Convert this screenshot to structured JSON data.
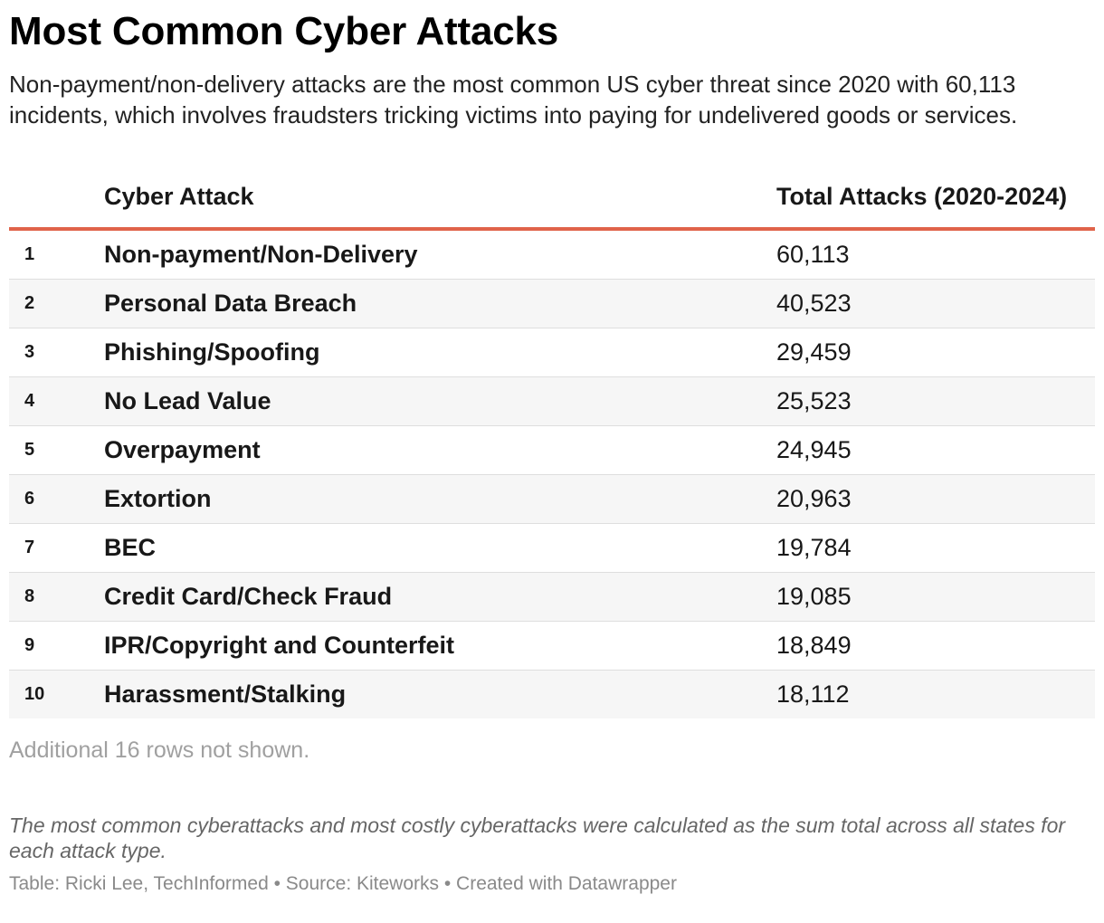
{
  "title": "Most Common Cyber Attacks",
  "subtitle": "Non-payment/non-delivery attacks are the most common US cyber threat since 2020 with 60,113 incidents, which involves fraudsters tricking victims into paying for undelivered goods or services.",
  "colors": {
    "header_rule": "#e0634a",
    "stripe": "#f6f6f6"
  },
  "chart_data": {
    "type": "table",
    "columns": [
      "",
      "Cyber Attack",
      "Total Attacks (2020-2024)"
    ],
    "rows": [
      {
        "rank": "1",
        "attack": "Non-payment/Non-Delivery",
        "total": "60,113"
      },
      {
        "rank": "2",
        "attack": "Personal Data Breach",
        "total": "40,523"
      },
      {
        "rank": "3",
        "attack": "Phishing/Spoofing",
        "total": "29,459"
      },
      {
        "rank": "4",
        "attack": "No Lead Value",
        "total": "25,523"
      },
      {
        "rank": "5",
        "attack": "Overpayment",
        "total": "24,945"
      },
      {
        "rank": "6",
        "attack": "Extortion",
        "total": "20,963"
      },
      {
        "rank": "7",
        "attack": "BEC",
        "total": "19,784"
      },
      {
        "rank": "8",
        "attack": "Credit Card/Check Fraud",
        "total": "19,085"
      },
      {
        "rank": "9",
        "attack": "IPR/Copyright and Counterfeit",
        "total": "18,849"
      },
      {
        "rank": "10",
        "attack": "Harassment/Stalking",
        "total": "18,112"
      }
    ]
  },
  "more_rows_note": "Additional 16 rows not shown.",
  "notes": "The most common cyberattacks and most costly cyberattacks were calculated as the sum total across all states for each attack type.",
  "footer": "Table: Ricki Lee, TechInformed • Source: Kiteworks • Created with Datawrapper"
}
